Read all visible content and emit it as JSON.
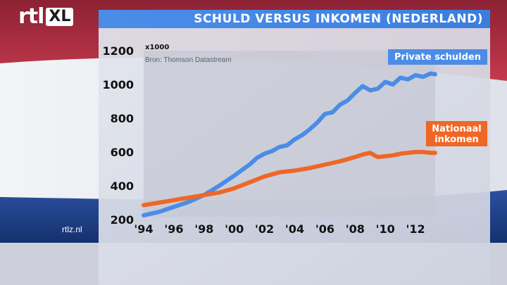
{
  "logo": {
    "rtl": "rtl",
    "xl": "XL"
  },
  "title": "SCHULD VERSUS INKOMEN (NEDERLAND)",
  "site": "rtlz.nl",
  "chart_data": {
    "type": "line",
    "unit_label": "x1000",
    "source": "Bron: Thomson Datastream",
    "ylim": [
      200,
      1200
    ],
    "yticks": [
      "1200",
      "1000",
      "800",
      "600",
      "400",
      "200"
    ],
    "yticks_values": [
      1200,
      1000,
      800,
      600,
      400,
      200
    ],
    "xlim": [
      1994,
      2013.3
    ],
    "xticks": [
      "'94",
      "'96",
      "'98",
      "'00",
      "'02",
      "'04",
      "'06",
      "'08",
      "'10",
      "'12"
    ],
    "xticks_values": [
      1994,
      1996,
      1998,
      2000,
      2002,
      2004,
      2006,
      2008,
      2010,
      2012
    ],
    "series": [
      {
        "name": "Private schulden",
        "label_lines": [
          "Private schulden"
        ],
        "color": "#4b8ce6",
        "x": [
          1994,
          1995,
          1996,
          1997,
          1998,
          1999,
          2000,
          2001,
          2001.5,
          2002,
          2002.5,
          2003,
          2003.5,
          2004,
          2004.5,
          2005,
          2005.5,
          2006,
          2006.5,
          2007,
          2007.5,
          2008,
          2008.5,
          2009,
          2009.5,
          2010,
          2010.5,
          2011,
          2011.5,
          2012,
          2012.5,
          2013,
          2013.3
        ],
        "values": [
          225,
          245,
          275,
          305,
          345,
          400,
          460,
          525,
          565,
          590,
          605,
          630,
          640,
          675,
          700,
          735,
          775,
          825,
          835,
          880,
          905,
          950,
          990,
          965,
          975,
          1015,
          1000,
          1040,
          1030,
          1055,
          1045,
          1065,
          1060
        ]
      },
      {
        "name": "Nationaal inkomen",
        "label_lines": [
          "Nationaal",
          "inkomen"
        ],
        "color": "#ee6726",
        "x": [
          1994,
          1995,
          1996,
          1997,
          1998,
          1999,
          2000,
          2001,
          2002,
          2003,
          2004,
          2005,
          2006,
          2007,
          2008,
          2008.5,
          2009,
          2009.5,
          2010,
          2010.5,
          2011,
          2011.5,
          2012,
          2012.5,
          2013,
          2013.3
        ],
        "values": [
          285,
          300,
          315,
          330,
          345,
          360,
          385,
          420,
          455,
          480,
          490,
          505,
          525,
          545,
          570,
          585,
          595,
          570,
          575,
          580,
          590,
          595,
          600,
          600,
          595,
          595
        ]
      }
    ]
  }
}
